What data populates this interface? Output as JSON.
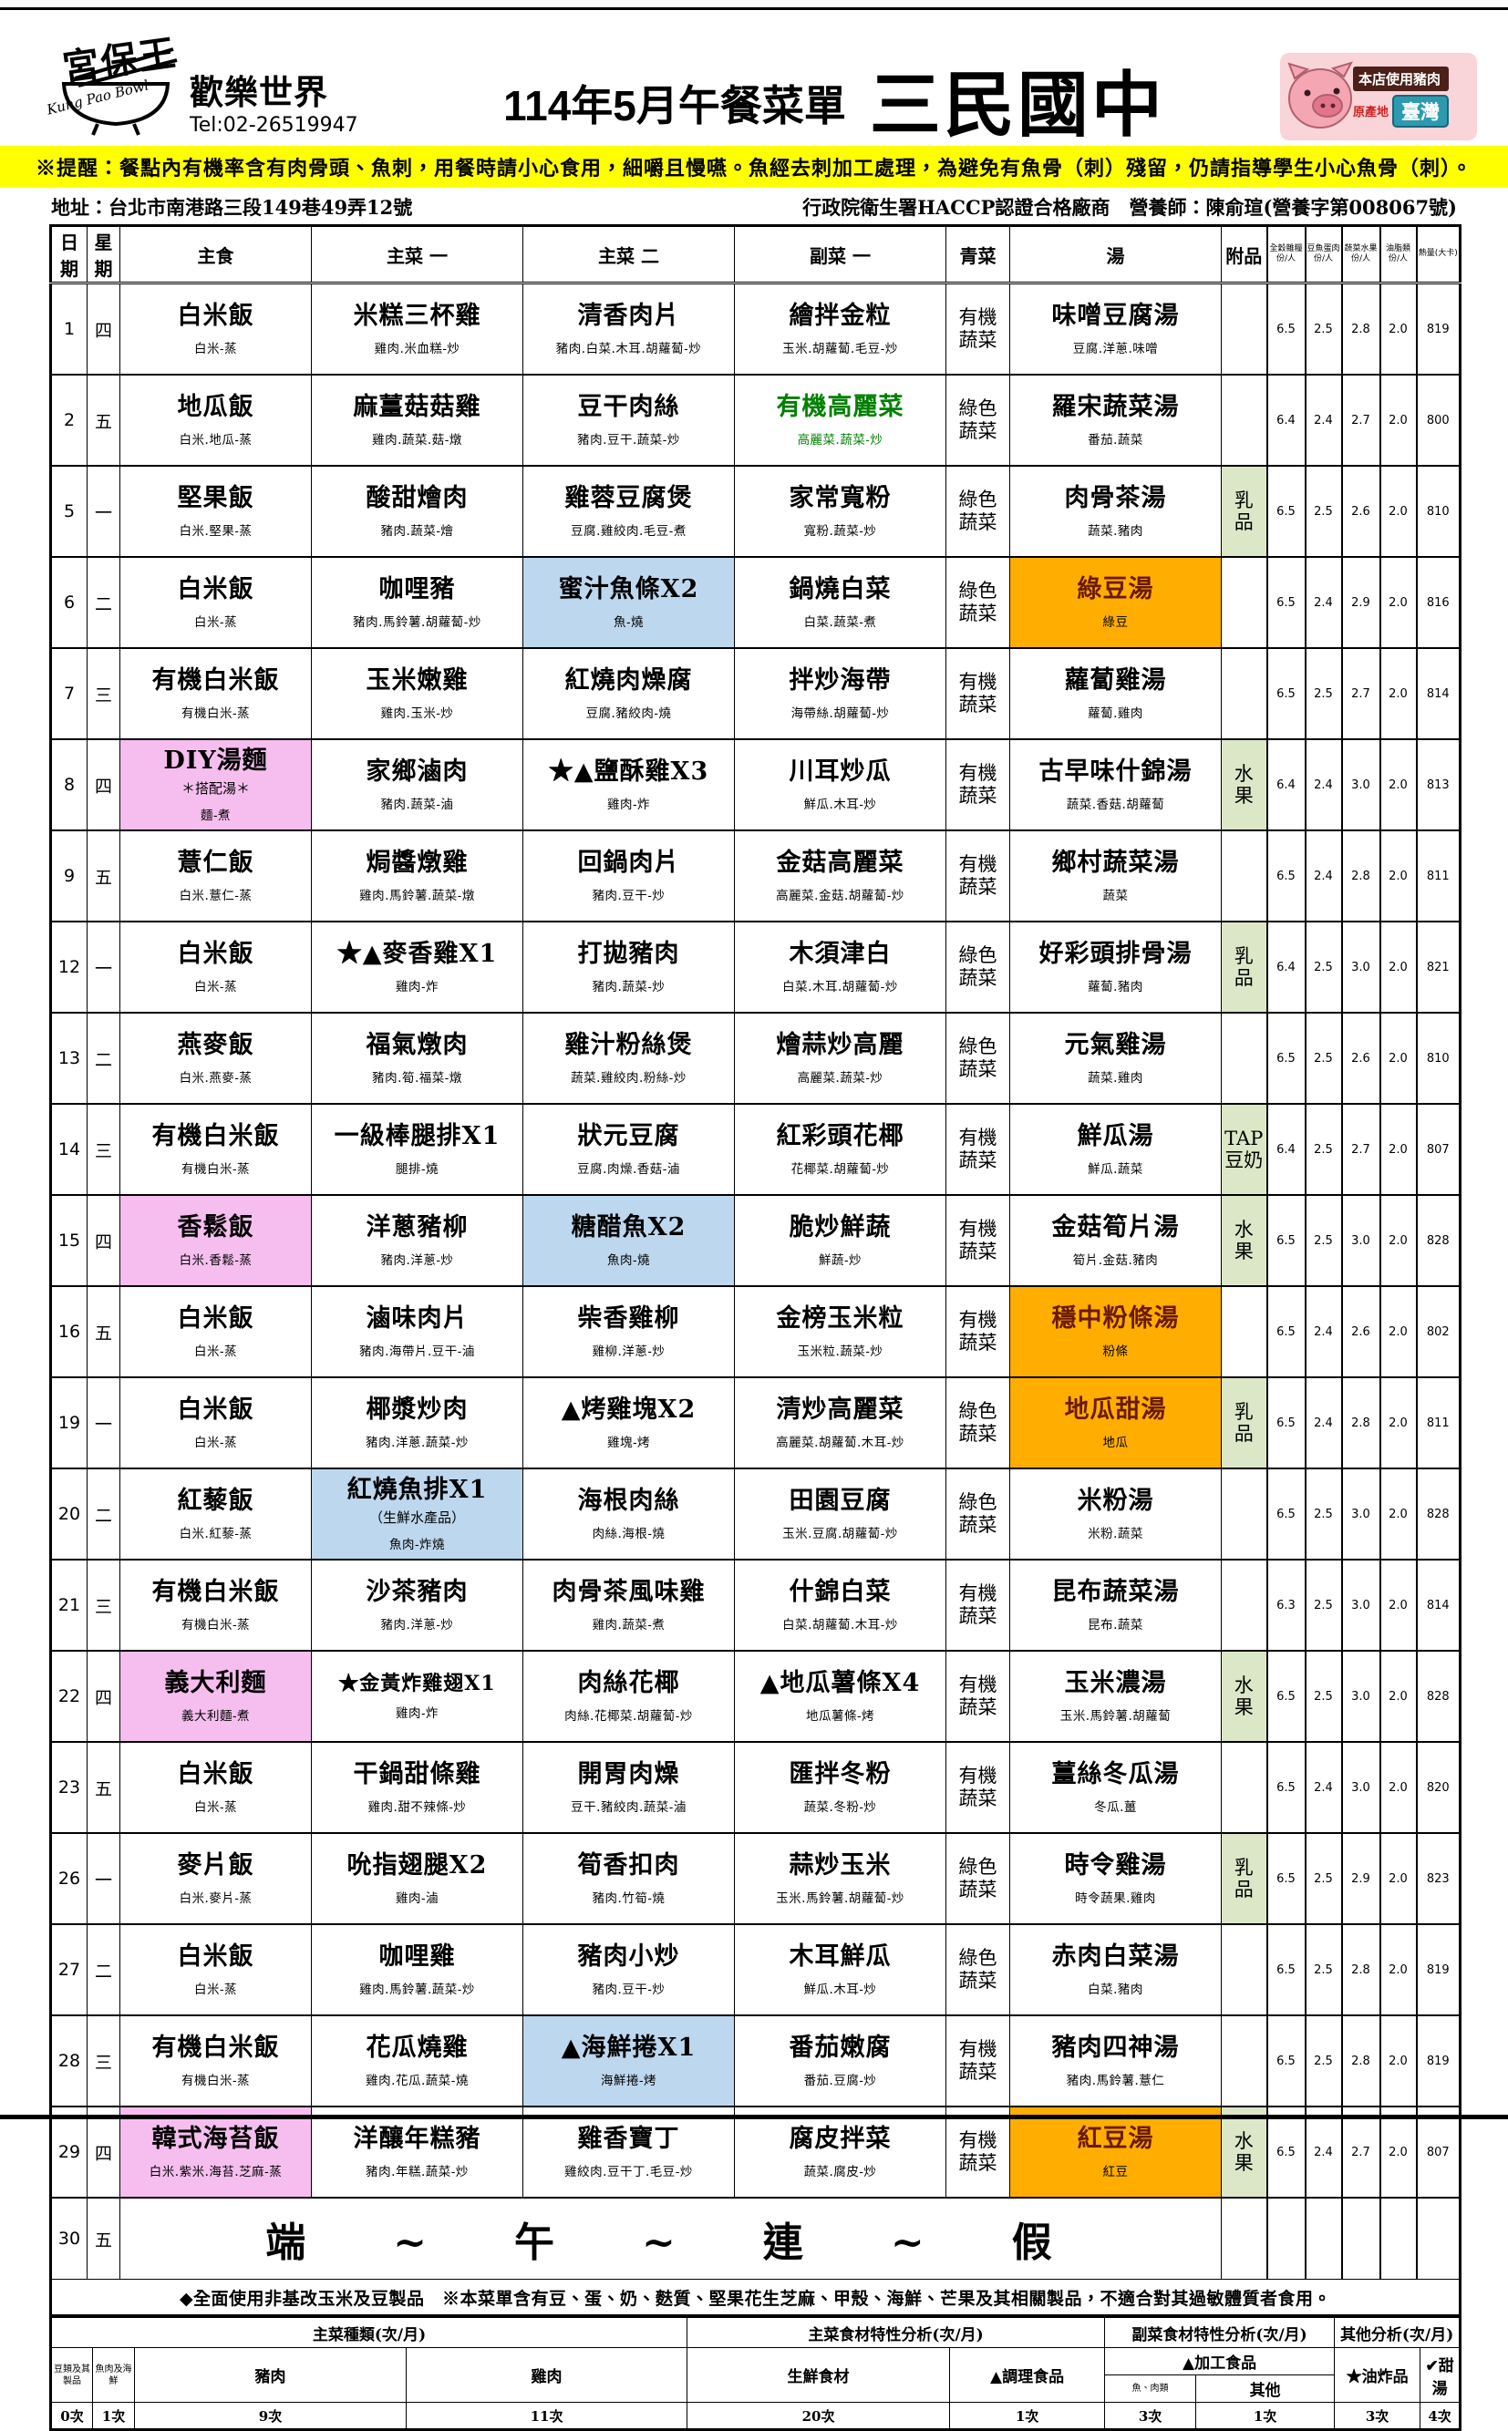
{
  "header": {
    "logo_cn": "宮保王",
    "logo_en": "Kung Pao Bowl",
    "logo_world": "歡樂世界",
    "tel": "Tel:02-26519947",
    "title": "114年5月午餐菜單",
    "school": "三民國中",
    "badge_banner": "本店使用豬肉",
    "badge_origin_label": "原產地",
    "badge_origin": "臺灣"
  },
  "notice": "※提醒：餐點內有機率含有肉骨頭、魚刺，用餐時請小心食用，細嚼且慢嚥。魚經去刺加工處理，為避免有魚骨（刺）殘留，仍請指導學生小心魚骨（刺）。",
  "address": "地址：台北市南港路三段149巷49弄12號",
  "certification": "行政院衛生署HACCP認證合格廠商　營養師：陳俞瑄(營養字第008067號)",
  "table": {
    "columns": [
      "日期",
      "星期",
      "主食",
      "主菜 一",
      "主菜 二",
      "副菜 一",
      "青菜",
      "湯",
      "附品",
      "全穀雜糧 份/人",
      "豆魚蛋肉 份/人",
      "蔬菜水果 份/人",
      "油脂類 份/人",
      "熱量(大卡)"
    ],
    "rows": [
      {
        "date": "1",
        "weekday": "四",
        "staple": {
          "name": "白米飯",
          "sub": "白米-蒸"
        },
        "main1": {
          "name": "米糕三杯雞",
          "sub": "雞肉.米血糕-炒"
        },
        "main2": {
          "name": "清香肉片",
          "sub": "豬肉.白菜.木耳.胡蘿蔔-炒"
        },
        "side": {
          "name": "繪拌金粒",
          "sub": "玉米.胡蘿蔔.毛豆-炒"
        },
        "veg": "有機蔬菜",
        "soup": {
          "name": "味噌豆腐湯",
          "sub": "豆腐.洋蔥.味噌"
        },
        "extra": null,
        "nutrition": [
          "6.5",
          "2.5",
          "2.8",
          "2.0",
          "819"
        ]
      },
      {
        "date": "2",
        "weekday": "五",
        "staple": {
          "name": "地瓜飯",
          "sub": "白米.地瓜-蒸"
        },
        "main1": {
          "name": "麻薑菇菇雞",
          "sub": "雞肉.蔬菜.菇-燉"
        },
        "main2": {
          "name": "豆干肉絲",
          "sub": "豬肉.豆干.蔬菜-炒"
        },
        "side": {
          "name": "有機高麗菜",
          "sub": "高麗菜.蔬菜-炒",
          "green": true
        },
        "veg": "綠色蔬菜",
        "soup": {
          "name": "羅宋蔬菜湯",
          "sub": "番茄.蔬菜"
        },
        "extra": null,
        "nutrition": [
          "6.4",
          "2.4",
          "2.7",
          "2.0",
          "800"
        ]
      },
      {
        "date": "5",
        "weekday": "一",
        "staple": {
          "name": "堅果飯",
          "sub": "白米.堅果-蒸"
        },
        "main1": {
          "name": "酸甜燴肉",
          "sub": "豬肉.蔬菜-燴"
        },
        "main2": {
          "name": "雞蓉豆腐煲",
          "sub": "豆腐.雞絞肉.毛豆-煮"
        },
        "side": {
          "name": "家常寬粉",
          "sub": "寬粉.蔬菜-炒"
        },
        "veg": "綠色蔬菜",
        "soup": {
          "name": "肉骨茶湯",
          "sub": "蔬菜.豬肉"
        },
        "extra": [
          "乳",
          "品"
        ],
        "nutrition": [
          "6.5",
          "2.5",
          "2.6",
          "2.0",
          "810"
        ]
      },
      {
        "date": "6",
        "weekday": "二",
        "staple": {
          "name": "白米飯",
          "sub": "白米-蒸"
        },
        "main1": {
          "name": "咖哩豬",
          "sub": "豬肉.馬鈴薯.胡蘿蔔-炒"
        },
        "main2": {
          "name": "蜜汁魚條X2",
          "sub": "魚-燒",
          "hl": "blue"
        },
        "side": {
          "name": "鍋燒白菜",
          "sub": "白菜.蔬菜-煮"
        },
        "veg": "綠色蔬菜",
        "soup": {
          "name": "綠豆湯",
          "sub": "綠豆",
          "hl": "orange"
        },
        "extra": null,
        "nutrition": [
          "6.5",
          "2.4",
          "2.9",
          "2.0",
          "816"
        ]
      },
      {
        "date": "7",
        "weekday": "三",
        "staple": {
          "name": "有機白米飯",
          "sub": "有機白米-蒸"
        },
        "main1": {
          "name": "玉米嫩雞",
          "sub": "雞肉.玉米-炒"
        },
        "main2": {
          "name": "紅燒肉燥腐",
          "sub": "豆腐.豬絞肉-燒"
        },
        "side": {
          "name": "拌炒海帶",
          "sub": "海帶絲.胡蘿蔔-炒"
        },
        "veg": "有機蔬菜",
        "soup": {
          "name": "蘿蔔雞湯",
          "sub": "蘿蔔.雞肉"
        },
        "extra": null,
        "nutrition": [
          "6.5",
          "2.5",
          "2.7",
          "2.0",
          "814"
        ]
      },
      {
        "date": "8",
        "weekday": "四",
        "staple": {
          "name": "DIY湯麵",
          "note": "＊搭配湯＊",
          "sub": "麵-煮",
          "hl": "pink"
        },
        "main1": {
          "name": "家鄉滷肉",
          "sub": "豬肉.蔬菜-滷"
        },
        "main2": {
          "name": "★▲鹽酥雞X3",
          "sub": "雞肉-炸"
        },
        "side": {
          "name": "川耳炒瓜",
          "sub": "鮮瓜.木耳-炒"
        },
        "veg": "有機蔬菜",
        "soup": {
          "name": "古早味什錦湯",
          "sub": "蔬菜.香菇.胡蘿蔔"
        },
        "extra": [
          "水",
          "果"
        ],
        "nutrition": [
          "6.4",
          "2.4",
          "3.0",
          "2.0",
          "813"
        ]
      },
      {
        "date": "9",
        "weekday": "五",
        "staple": {
          "name": "薏仁飯",
          "sub": "白米.薏仁-蒸"
        },
        "main1": {
          "name": "焗醬燉雞",
          "sub": "雞肉.馬鈴薯.蔬菜-燉"
        },
        "main2": {
          "name": "回鍋肉片",
          "sub": "豬肉.豆干-炒"
        },
        "side": {
          "name": "金菇高麗菜",
          "sub": "高麗菜.金菇.胡蘿蔔-炒"
        },
        "veg": "有機蔬菜",
        "soup": {
          "name": "鄉村蔬菜湯",
          "sub": "蔬菜"
        },
        "extra": null,
        "nutrition": [
          "6.5",
          "2.4",
          "2.8",
          "2.0",
          "811"
        ]
      },
      {
        "date": "12",
        "weekday": "一",
        "staple": {
          "name": "白米飯",
          "sub": "白米-蒸"
        },
        "main1": {
          "name": "★▲麥香雞X1",
          "sub": "雞肉-炸"
        },
        "main2": {
          "name": "打拋豬肉",
          "sub": "豬肉.蔬菜-炒"
        },
        "side": {
          "name": "木須津白",
          "sub": "白菜.木耳.胡蘿蔔-炒"
        },
        "veg": "綠色蔬菜",
        "soup": {
          "name": "好彩頭排骨湯",
          "sub": "蘿蔔.豬肉"
        },
        "extra": [
          "乳",
          "品"
        ],
        "nutrition": [
          "6.4",
          "2.5",
          "3.0",
          "2.0",
          "821"
        ]
      },
      {
        "date": "13",
        "weekday": "二",
        "staple": {
          "name": "燕麥飯",
          "sub": "白米.燕麥-蒸"
        },
        "main1": {
          "name": "福氣燉肉",
          "sub": "豬肉.筍.福菜-燉"
        },
        "main2": {
          "name": "雞汁粉絲煲",
          "sub": "蔬菜.雞絞肉.粉絲-炒"
        },
        "side": {
          "name": "燴蒜炒高麗",
          "sub": "高麗菜.蔬菜-炒"
        },
        "veg": "綠色蔬菜",
        "soup": {
          "name": "元氣雞湯",
          "sub": "蔬菜.雞肉"
        },
        "extra": null,
        "nutrition": [
          "6.5",
          "2.5",
          "2.6",
          "2.0",
          "810"
        ]
      },
      {
        "date": "14",
        "weekday": "三",
        "staple": {
          "name": "有機白米飯",
          "sub": "有機白米-蒸"
        },
        "main1": {
          "name": "一級棒腿排X1",
          "sub": "腿排-燒"
        },
        "main2": {
          "name": "狀元豆腐",
          "sub": "豆腐.肉燥.香菇-滷"
        },
        "side": {
          "name": "紅彩頭花椰",
          "sub": "花椰菜.胡蘿蔔-炒"
        },
        "veg": "有機蔬菜",
        "soup": {
          "name": "鮮瓜湯",
          "sub": "鮮瓜.蔬菜"
        },
        "extra": [
          "TAP",
          "豆奶"
        ],
        "nutrition": [
          "6.4",
          "2.5",
          "2.7",
          "2.0",
          "807"
        ]
      },
      {
        "date": "15",
        "weekday": "四",
        "staple": {
          "name": "香鬆飯",
          "sub": "白米.香鬆-蒸",
          "hl": "pink"
        },
        "main1": {
          "name": "洋蔥豬柳",
          "sub": "豬肉.洋蔥-炒"
        },
        "main2": {
          "name": "糖醋魚X2",
          "sub": "魚肉-燒",
          "hl": "blue"
        },
        "side": {
          "name": "脆炒鮮蔬",
          "sub": "鮮蔬-炒"
        },
        "veg": "有機蔬菜",
        "soup": {
          "name": "金菇筍片湯",
          "sub": "筍片.金菇.豬肉"
        },
        "extra": [
          "水",
          "果"
        ],
        "nutrition": [
          "6.5",
          "2.5",
          "3.0",
          "2.0",
          "828"
        ]
      },
      {
        "date": "16",
        "weekday": "五",
        "staple": {
          "name": "白米飯",
          "sub": "白米-蒸"
        },
        "main1": {
          "name": "滷味肉片",
          "sub": "豬肉.海帶片.豆干-滷"
        },
        "main2": {
          "name": "柴香雞柳",
          "sub": "雞柳.洋蔥-炒"
        },
        "side": {
          "name": "金榜玉米粒",
          "sub": "玉米粒.蔬菜-炒"
        },
        "veg": "有機蔬菜",
        "soup": {
          "name": "穩中粉條湯",
          "sub": "粉條",
          "hl": "orange"
        },
        "extra": null,
        "nutrition": [
          "6.5",
          "2.4",
          "2.6",
          "2.0",
          "802"
        ]
      },
      {
        "date": "19",
        "weekday": "一",
        "staple": {
          "name": "白米飯",
          "sub": "白米-蒸"
        },
        "main1": {
          "name": "椰漿炒肉",
          "sub": "豬肉.洋蔥.蔬菜-炒"
        },
        "main2": {
          "name": "▲烤雞塊X2",
          "sub": "雞塊-烤"
        },
        "side": {
          "name": "清炒高麗菜",
          "sub": "高麗菜.胡蘿蔔.木耳-炒"
        },
        "veg": "綠色蔬菜",
        "soup": {
          "name": "地瓜甜湯",
          "sub": "地瓜",
          "hl": "orange"
        },
        "extra": [
          "乳",
          "品"
        ],
        "nutrition": [
          "6.5",
          "2.4",
          "2.8",
          "2.0",
          "811"
        ]
      },
      {
        "date": "20",
        "weekday": "二",
        "staple": {
          "name": "紅藜飯",
          "sub": "白米.紅藜-蒸"
        },
        "main1": {
          "name": "紅燒魚排X1",
          "note": "（生鮮水產品）",
          "sub": "魚肉-炸燒",
          "hl": "blue"
        },
        "main2": {
          "name": "海根肉絲",
          "sub": "肉絲.海根-燒"
        },
        "side": {
          "name": "田園豆腐",
          "sub": "玉米.豆腐.胡蘿蔔-炒"
        },
        "veg": "綠色蔬菜",
        "soup": {
          "name": "米粉湯",
          "sub": "米粉.蔬菜"
        },
        "extra": null,
        "nutrition": [
          "6.5",
          "2.5",
          "3.0",
          "2.0",
          "828"
        ]
      },
      {
        "date": "21",
        "weekday": "三",
        "staple": {
          "name": "有機白米飯",
          "sub": "有機白米-蒸"
        },
        "main1": {
          "name": "沙茶豬肉",
          "sub": "豬肉.洋蔥-炒"
        },
        "main2": {
          "name": "肉骨茶風味雞",
          "sub": "雞肉.蔬菜-煮"
        },
        "side": {
          "name": "什錦白菜",
          "sub": "白菜.胡蘿蔔.木耳-炒"
        },
        "veg": "有機蔬菜",
        "soup": {
          "name": "昆布蔬菜湯",
          "sub": "昆布.蔬菜"
        },
        "extra": null,
        "nutrition": [
          "6.3",
          "2.5",
          "3.0",
          "2.0",
          "814"
        ]
      },
      {
        "date": "22",
        "weekday": "四",
        "staple": {
          "name": "義大利麵",
          "sub": "義大利麵-煮",
          "hl": "pink"
        },
        "main1": {
          "name": "★金黃炸雞翅X1",
          "sub": "雞肉-炸"
        },
        "main2": {
          "name": "肉絲花椰",
          "sub": "肉絲.花椰菜.胡蘿蔔-炒"
        },
        "side": {
          "name": "▲地瓜薯條X4",
          "sub": "地瓜薯條-烤"
        },
        "veg": "有機蔬菜",
        "soup": {
          "name": "玉米濃湯",
          "sub": "玉米.馬鈴薯.胡蘿蔔"
        },
        "extra": [
          "水",
          "果"
        ],
        "nutrition": [
          "6.5",
          "2.5",
          "3.0",
          "2.0",
          "828"
        ]
      },
      {
        "date": "23",
        "weekday": "五",
        "staple": {
          "name": "白米飯",
          "sub": "白米-蒸"
        },
        "main1": {
          "name": "干鍋甜條雞",
          "sub": "雞肉.甜不辣條-炒"
        },
        "main2": {
          "name": "開胃肉燥",
          "sub": "豆干.豬絞肉.蔬菜-滷"
        },
        "side": {
          "name": "匯拌冬粉",
          "sub": "蔬菜.冬粉-炒"
        },
        "veg": "有機蔬菜",
        "soup": {
          "name": "薑絲冬瓜湯",
          "sub": "冬瓜.薑"
        },
        "extra": null,
        "nutrition": [
          "6.5",
          "2.4",
          "3.0",
          "2.0",
          "820"
        ]
      },
      {
        "date": "26",
        "weekday": "一",
        "staple": {
          "name": "麥片飯",
          "sub": "白米.麥片-蒸"
        },
        "main1": {
          "name": "吮指翅腿X2",
          "sub": "雞肉-滷"
        },
        "main2": {
          "name": "筍香扣肉",
          "sub": "豬肉.竹筍-燒"
        },
        "side": {
          "name": "蒜炒玉米",
          "sub": "玉米.馬鈴薯.胡蘿蔔-炒"
        },
        "veg": "綠色蔬菜",
        "soup": {
          "name": "時令雞湯",
          "sub": "時令蔬果.雞肉"
        },
        "extra": [
          "乳",
          "品"
        ],
        "nutrition": [
          "6.5",
          "2.5",
          "2.9",
          "2.0",
          "823"
        ]
      },
      {
        "date": "27",
        "weekday": "二",
        "staple": {
          "name": "白米飯",
          "sub": "白米-蒸"
        },
        "main1": {
          "name": "咖哩雞",
          "sub": "雞肉.馬鈴薯.蔬菜-炒"
        },
        "main2": {
          "name": "豬肉小炒",
          "sub": "豬肉.豆干-炒"
        },
        "side": {
          "name": "木耳鮮瓜",
          "sub": "鮮瓜.木耳-炒"
        },
        "veg": "綠色蔬菜",
        "soup": {
          "name": "赤肉白菜湯",
          "sub": "白菜.豬肉"
        },
        "extra": null,
        "nutrition": [
          "6.5",
          "2.5",
          "2.8",
          "2.0",
          "819"
        ]
      },
      {
        "date": "28",
        "weekday": "三",
        "staple": {
          "name": "有機白米飯",
          "sub": "有機白米-蒸"
        },
        "main1": {
          "name": "花瓜燒雞",
          "sub": "雞肉.花瓜.蔬菜-燒"
        },
        "main2": {
          "name": "▲海鮮捲X1",
          "sub": "海鮮捲-烤",
          "hl": "blue"
        },
        "side": {
          "name": "番茄嫩腐",
          "sub": "番茄.豆腐-炒"
        },
        "veg": "有機蔬菜",
        "soup": {
          "name": "豬肉四神湯",
          "sub": "豬肉.馬鈴薯.薏仁"
        },
        "extra": null,
        "nutrition": [
          "6.5",
          "2.5",
          "2.8",
          "2.0",
          "819"
        ]
      },
      {
        "date": "29",
        "weekday": "四",
        "staple": {
          "name": "韓式海苔飯",
          "sub": "白米.紫米.海苔.芝麻-蒸",
          "hl": "pink"
        },
        "main1": {
          "name": "洋釀年糕豬",
          "sub": "豬肉.年糕.蔬菜-炒"
        },
        "main2": {
          "name": "雞香寶丁",
          "sub": "雞絞肉.豆干丁.毛豆-炒"
        },
        "side": {
          "name": "腐皮拌菜",
          "sub": "蔬菜.腐皮-炒"
        },
        "veg": "有機蔬菜",
        "soup": {
          "name": "紅豆湯",
          "sub": "紅豆",
          "hl": "orange"
        },
        "extra": [
          "水",
          "果"
        ],
        "nutrition": [
          "6.5",
          "2.4",
          "2.7",
          "2.0",
          "807"
        ]
      }
    ],
    "holiday": {
      "date": "30",
      "weekday": "五",
      "text": "端　~　午　~　連　~　假"
    }
  },
  "footnote": "◆全面使用非基改玉米及豆製品　※本菜單含有豆、蛋、奶、麩質、堅果花生芝麻、甲殼、海鮮、芒果及其相關製品，不適合對其過敏體質者食用。",
  "analysis": {
    "sec_main_type": "主菜種類(次/月)",
    "sec_main_attr": "主菜食材特性分析(次/月)",
    "sec_side_attr": "副菜食材特性分析(次/月)",
    "sec_other": "其他分析(次/月)",
    "col_bean": "豆類及其製品",
    "val_bean": "0次",
    "col_fish": "魚肉及海鮮",
    "val_fish": "1次",
    "col_pork": "豬肉",
    "val_pork": "9次",
    "col_chicken": "雞肉",
    "val_chicken": "11次",
    "col_fresh": "生鮮食材",
    "val_fresh": "20次",
    "col_prepared": "▲調理食品",
    "val_prepared": "1次",
    "col_processed": "▲加工食品",
    "col_processed_meat": "魚、肉類",
    "val_processed_meat": "3次",
    "col_processed_other": "其他",
    "val_processed_other": "1次",
    "col_fried": "★油炸品",
    "val_fried": "3次",
    "col_sweet": "✔甜湯",
    "val_sweet": "4次"
  }
}
